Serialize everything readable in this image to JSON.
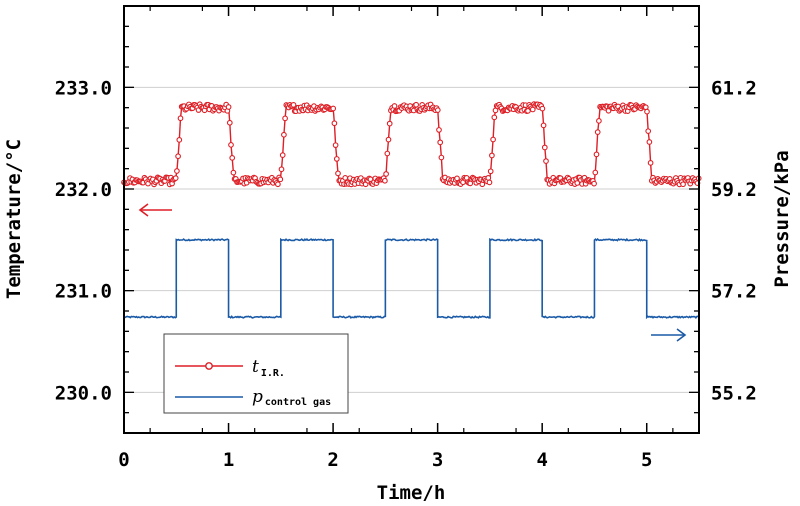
{
  "chart_data": {
    "type": "line",
    "title": "",
    "xlabel": "Time/h",
    "ylabel_left": "Temperature/°C",
    "ylabel_right": "Pressure/kPa",
    "xlim": [
      0,
      5.5
    ],
    "ylim_left": [
      229.6,
      233.8
    ],
    "ylim_right": [
      54.4,
      62.8
    ],
    "x_ticks": [
      0,
      1,
      2,
      3,
      4,
      5
    ],
    "x_tick_labels": [
      "0",
      "1",
      "2",
      "3",
      "4",
      "5"
    ],
    "y_left_ticks": [
      230.0,
      231.0,
      232.0,
      233.0
    ],
    "y_left_tick_labels": [
      "230.0",
      "231.0",
      "232.0",
      "233.0"
    ],
    "y_right_ticks": [
      55.2,
      57.2,
      59.2,
      61.2
    ],
    "y_right_tick_labels": [
      "55.2",
      "57.2",
      "59.2",
      "61.2"
    ],
    "grid": "horizontal",
    "legend_position": "lower-left",
    "series": [
      {
        "name": "t",
        "subscript": "I.R.",
        "axis": "left",
        "color": "#dd1f26",
        "marker": "open-circle",
        "description": "square-wave temperature response",
        "low_value": 232.08,
        "high_value": 232.8,
        "transitions_x": [
          0.5,
          1.0,
          1.5,
          2.0,
          2.5,
          3.0,
          3.5,
          4.0,
          4.5,
          5.0
        ]
      },
      {
        "name": "p",
        "subscript": "control gas",
        "axis": "right",
        "color": "#1a5aa6",
        "marker": "none",
        "description": "square-wave control gas pressure",
        "low_value": 56.68,
        "high_value": 58.2,
        "transitions_x": [
          0.5,
          1.0,
          1.5,
          2.0,
          2.5,
          3.0,
          3.5,
          4.0,
          4.5,
          5.0
        ]
      }
    ],
    "annotations": [
      {
        "label": "left-arrow",
        "target_axis": "left",
        "color": "#dd1f26"
      },
      {
        "label": "right-arrow",
        "target_axis": "right",
        "color": "#1a5aa6"
      }
    ]
  }
}
